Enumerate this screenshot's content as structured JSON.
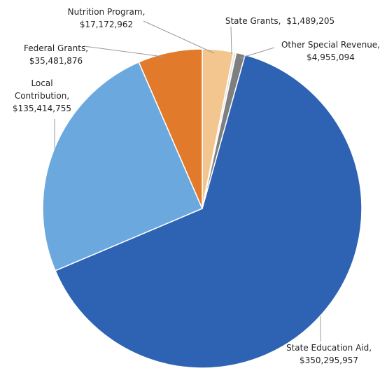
{
  "chart_data": {
    "type": "pie",
    "categories": [
      "Nutrition Program,",
      "State Grants,",
      "Other Special Revenue,",
      "State Education Aid,",
      "Local Contribution,",
      "Federal Grants,"
    ],
    "values": [
      17172962,
      1489205,
      4955094,
      350295957,
      135414755,
      35481876
    ],
    "value_labels": [
      "$17,172,962",
      "$1,489,205",
      "$4,955,094",
      "$350,295,957",
      "$135,414,755",
      "$35,481,876"
    ],
    "colors": [
      "#f3c690",
      "#e4e4e4",
      "#7f7f7f",
      "#2e62b3",
      "#6aa8de",
      "#e27a2b"
    ]
  }
}
